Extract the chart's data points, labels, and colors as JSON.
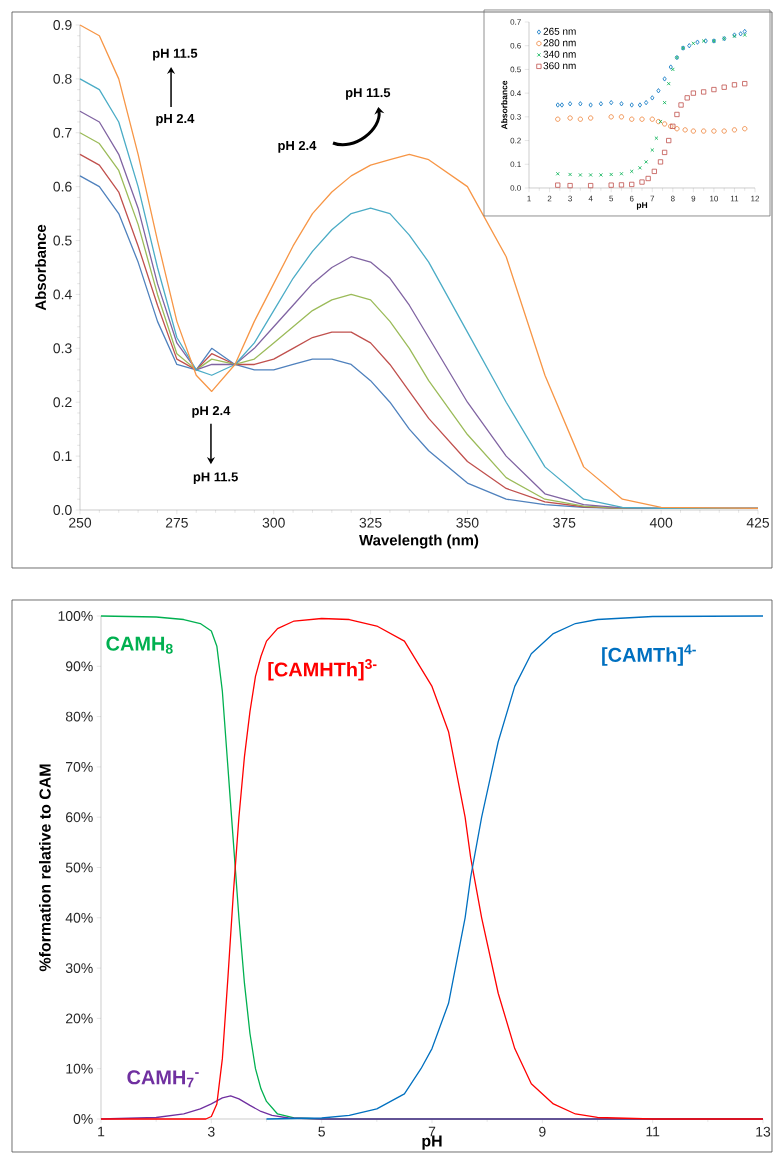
{
  "chart_data": [
    {
      "type": "line",
      "xlabel": "Wavelength (nm)",
      "ylabel": "Absorbance",
      "marker": "none",
      "line_style": "solid",
      "xlim": [
        250,
        425
      ],
      "ylim": [
        0,
        0.9
      ],
      "xticks": [
        250,
        275,
        300,
        325,
        350,
        375,
        400,
        425
      ],
      "yticks": [
        {
          "value": 0,
          "label": "0.0"
        },
        0.1,
        0.2,
        0.3,
        0.4,
        0.5,
        0.6,
        0.7,
        0.8,
        0.9
      ],
      "x": [
        250,
        255,
        260,
        265,
        270,
        275,
        280,
        284,
        290,
        295,
        300,
        305,
        310,
        315,
        320,
        325,
        330,
        335,
        340,
        350,
        360,
        370,
        380,
        390,
        400,
        425
      ],
      "series": [
        {
          "color": "#4f81bd",
          "values": [
            0.62,
            0.6,
            0.55,
            0.46,
            0.35,
            0.27,
            0.26,
            0.3,
            0.27,
            0.26,
            0.26,
            0.27,
            0.28,
            0.28,
            0.27,
            0.24,
            0.2,
            0.15,
            0.11,
            0.05,
            0.02,
            0.01,
            0.005,
            0.003,
            0.003,
            0.003
          ]
        },
        {
          "color": "#c0504d",
          "values": [
            0.66,
            0.64,
            0.59,
            0.49,
            0.38,
            0.28,
            0.26,
            0.29,
            0.27,
            0.27,
            0.28,
            0.3,
            0.32,
            0.33,
            0.33,
            0.31,
            0.27,
            0.22,
            0.17,
            0.09,
            0.04,
            0.015,
            0.006,
            0.003,
            0.003,
            0.003
          ]
        },
        {
          "color": "#9bbb59",
          "values": [
            0.7,
            0.68,
            0.63,
            0.53,
            0.4,
            0.29,
            0.26,
            0.28,
            0.27,
            0.28,
            0.31,
            0.34,
            0.37,
            0.39,
            0.4,
            0.39,
            0.35,
            0.3,
            0.24,
            0.14,
            0.06,
            0.02,
            0.007,
            0.003,
            0.003,
            0.003
          ]
        },
        {
          "color": "#8064a2",
          "values": [
            0.74,
            0.72,
            0.66,
            0.56,
            0.42,
            0.31,
            0.26,
            0.27,
            0.27,
            0.3,
            0.34,
            0.38,
            0.42,
            0.45,
            0.47,
            0.46,
            0.43,
            0.38,
            0.32,
            0.2,
            0.1,
            0.03,
            0.01,
            0.004,
            0.003,
            0.003
          ]
        },
        {
          "color": "#4bacc6",
          "values": [
            0.8,
            0.78,
            0.72,
            0.6,
            0.45,
            0.32,
            0.26,
            0.25,
            0.27,
            0.31,
            0.37,
            0.43,
            0.48,
            0.52,
            0.55,
            0.56,
            0.55,
            0.51,
            0.46,
            0.33,
            0.2,
            0.08,
            0.02,
            0.005,
            0.003,
            0.003
          ]
        },
        {
          "color": "#f79646",
          "values": [
            0.9,
            0.88,
            0.8,
            0.66,
            0.5,
            0.35,
            0.25,
            0.22,
            0.27,
            0.35,
            0.42,
            0.49,
            0.55,
            0.59,
            0.62,
            0.64,
            0.65,
            0.66,
            0.65,
            0.6,
            0.47,
            0.25,
            0.08,
            0.02,
            0.005,
            0.003
          ]
        }
      ],
      "annotations": [
        "pH 11.5",
        "pH 2.4",
        "pH 2.4",
        "pH 11.5",
        "pH 2.4",
        "pH 11.5"
      ]
    },
    {
      "type": "scatter",
      "xlabel": "pH",
      "ylabel": "Absorbance",
      "legend": "top left",
      "xlim": [
        1,
        12
      ],
      "ylim": [
        0,
        0.7
      ],
      "xticks": [
        1,
        2,
        3,
        4,
        5,
        6,
        7,
        8,
        9,
        10,
        11,
        12
      ],
      "yticks": [
        {
          "value": 0,
          "label": "0.0"
        },
        0.1,
        0.2,
        0.3,
        0.4,
        0.5,
        0.6,
        0.7
      ],
      "series": [
        {
          "name": "265 nm",
          "color": "#0070c0",
          "marker": "diamond",
          "x": [
            2.4,
            2.6,
            3,
            3.5,
            4,
            4.5,
            5,
            5.5,
            6,
            6.4,
            6.7,
            7,
            7.3,
            7.6,
            7.9,
            8.2,
            8.5,
            8.8,
            9.2,
            9.6,
            10,
            10.5,
            11,
            11.3,
            11.5
          ],
          "values": [
            0.35,
            0.35,
            0.355,
            0.355,
            0.35,
            0.355,
            0.36,
            0.355,
            0.35,
            0.35,
            0.36,
            0.38,
            0.41,
            0.46,
            0.51,
            0.55,
            0.59,
            0.6,
            0.615,
            0.62,
            0.62,
            0.63,
            0.645,
            0.65,
            0.66
          ]
        },
        {
          "name": "280 nm",
          "color": "#ed7d31",
          "marker": "circle",
          "x": [
            2.4,
            3,
            3.5,
            4,
            5,
            5.5,
            6,
            6.5,
            7,
            7.3,
            7.6,
            7.9,
            8.2,
            8.6,
            9,
            9.5,
            10,
            10.5,
            11,
            11.5
          ],
          "values": [
            0.29,
            0.295,
            0.29,
            0.295,
            0.3,
            0.3,
            0.29,
            0.29,
            0.29,
            0.28,
            0.27,
            0.26,
            0.25,
            0.245,
            0.24,
            0.24,
            0.24,
            0.24,
            0.245,
            0.25
          ]
        },
        {
          "name": "340 nm",
          "color": "#00b050",
          "marker": "cross",
          "x": [
            2.4,
            3,
            3.5,
            4,
            4.5,
            5,
            5.5,
            6,
            6.4,
            6.7,
            7,
            7.2,
            7.4,
            7.6,
            7.8,
            8,
            8.2,
            8.5,
            9,
            9.5,
            10,
            10.5,
            11,
            11.5
          ],
          "values": [
            0.06,
            0.057,
            0.055,
            0.055,
            0.055,
            0.057,
            0.06,
            0.07,
            0.085,
            0.11,
            0.16,
            0.21,
            0.28,
            0.36,
            0.44,
            0.5,
            0.55,
            0.59,
            0.61,
            0.62,
            0.62,
            0.63,
            0.64,
            0.645
          ]
        },
        {
          "name": "360 nm",
          "color": "#c0504d",
          "marker": "square",
          "x": [
            2.4,
            3,
            4,
            5,
            5.5,
            6,
            6.5,
            6.8,
            7.1,
            7.4,
            7.6,
            7.8,
            8,
            8.2,
            8.4,
            8.7,
            9,
            9.5,
            10,
            10.5,
            11,
            11.5
          ],
          "values": [
            0.012,
            0.01,
            0.01,
            0.012,
            0.013,
            0.015,
            0.025,
            0.04,
            0.07,
            0.11,
            0.15,
            0.2,
            0.26,
            0.31,
            0.35,
            0.38,
            0.4,
            0.405,
            0.415,
            0.425,
            0.435,
            0.44
          ]
        }
      ]
    },
    {
      "type": "line",
      "xlabel": "pH",
      "ylabel": "%formation relative to CAM",
      "marker": "none",
      "line_style": "solid",
      "xlim": [
        1,
        13
      ],
      "ylim": [
        0,
        100
      ],
      "xticks": [
        1,
        3,
        5,
        7,
        9,
        11,
        13
      ],
      "yticks": [
        {
          "value": 0,
          "label": "0%"
        },
        {
          "value": 10,
          "label": "10%"
        },
        {
          "value": 20,
          "label": "20%"
        },
        {
          "value": 30,
          "label": "30%"
        },
        {
          "value": 40,
          "label": "40%"
        },
        {
          "value": 50,
          "label": "50%"
        },
        {
          "value": 60,
          "label": "60%"
        },
        {
          "value": 70,
          "label": "70%"
        },
        {
          "value": 80,
          "label": "80%"
        },
        {
          "value": 90,
          "label": "90%"
        },
        {
          "value": 100,
          "label": "100%"
        }
      ],
      "series": [
        {
          "name": "CAMH$_{8}$",
          "color": "#00b050",
          "x": [
            1,
            2,
            2.5,
            2.8,
            3.0,
            3.1,
            3.2,
            3.3,
            3.4,
            3.5,
            3.6,
            3.7,
            3.8,
            3.9,
            4.0,
            4.2,
            4.5,
            5,
            13
          ],
          "values": [
            100,
            99.8,
            99.3,
            98.5,
            97,
            94,
            85,
            70,
            55,
            40,
            27,
            17,
            10,
            6,
            3.5,
            1,
            0.2,
            0,
            0
          ]
        },
        {
          "name": "CAMH$_{7}$$^{-}$",
          "color": "#7030a0",
          "x": [
            1,
            2,
            2.5,
            2.8,
            3.0,
            3.2,
            3.35,
            3.5,
            3.7,
            3.9,
            4.1,
            4.4,
            5,
            13
          ],
          "values": [
            0,
            0.3,
            1,
            2,
            3,
            4.2,
            4.6,
            4,
            2.7,
            1.5,
            0.7,
            0.2,
            0,
            0
          ]
        },
        {
          "name": "[CAMHTh]$^{3-}$",
          "color": "#ff0000",
          "x": [
            1,
            2.9,
            3.0,
            3.1,
            3.2,
            3.3,
            3.4,
            3.5,
            3.6,
            3.7,
            3.8,
            3.9,
            4.0,
            4.2,
            4.5,
            5,
            5.5,
            6,
            6.5,
            7,
            7.3,
            7.6,
            7.7,
            7.9,
            8.2,
            8.5,
            8.8,
            9.2,
            9.6,
            10,
            11,
            13
          ],
          "values": [
            0,
            0,
            0.5,
            3,
            12,
            28,
            45,
            60,
            72,
            81,
            88,
            92,
            95,
            97.5,
            99,
            99.5,
            99.3,
            98,
            95,
            86,
            77,
            60,
            52,
            40,
            25,
            14,
            7,
            3,
            1,
            0.3,
            0,
            0
          ]
        },
        {
          "name": "[CAMTh]$^{4-}$",
          "color": "#0070c0",
          "x": [
            4,
            5,
            5.5,
            6,
            6.5,
            6.8,
            7,
            7.3,
            7.6,
            7.7,
            7.9,
            8.2,
            8.5,
            8.8,
            9.2,
            9.6,
            10,
            11,
            13
          ],
          "values": [
            0,
            0.2,
            0.7,
            2,
            5,
            10,
            14,
            23,
            40,
            48,
            60,
            75,
            86,
            92.5,
            96.5,
            98.5,
            99.3,
            99.9,
            100
          ]
        }
      ]
    }
  ]
}
